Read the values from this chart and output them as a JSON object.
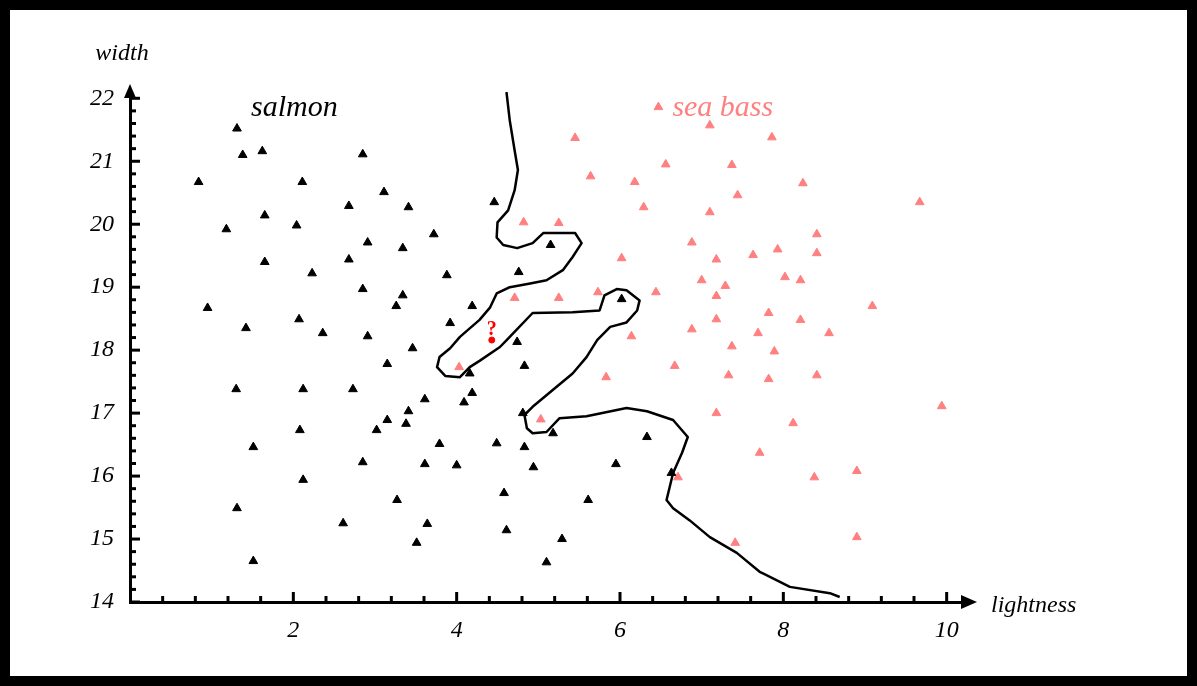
{
  "chart_data": {
    "type": "scatter",
    "xlabel": "lightness",
    "ylabel": "width",
    "xlim": [
      0,
      10.2
    ],
    "ylim": [
      14,
      22.1
    ],
    "xticks": [
      {
        "value": 0.4,
        "label": null
      },
      {
        "value": 0.8,
        "label": null
      },
      {
        "value": 1.2,
        "label": null
      },
      {
        "value": 1.6,
        "label": null
      },
      2,
      {
        "value": 2.4,
        "label": null
      },
      {
        "value": 2.8,
        "label": null
      },
      {
        "value": 3.2,
        "label": null
      },
      {
        "value": 3.6,
        "label": null
      },
      4,
      {
        "value": 4.4,
        "label": null
      },
      {
        "value": 4.8,
        "label": null
      },
      {
        "value": 5.2,
        "label": null
      },
      {
        "value": 5.6,
        "label": null
      },
      6,
      {
        "value": 6.4,
        "label": null
      },
      {
        "value": 6.8,
        "label": null
      },
      {
        "value": 7.2,
        "label": null
      },
      {
        "value": 7.6,
        "label": null
      },
      8,
      {
        "value": 8.4,
        "label": null
      },
      {
        "value": 8.8,
        "label": null
      },
      {
        "value": 9.2,
        "label": null
      },
      {
        "value": 9.6,
        "label": null
      },
      10
    ],
    "yticks": [
      14,
      {
        "value": 14.2,
        "label": null
      },
      {
        "value": 14.4,
        "label": null
      },
      {
        "value": 14.6,
        "label": null
      },
      {
        "value": 14.8,
        "label": null
      },
      15,
      {
        "value": 15.2,
        "label": null
      },
      {
        "value": 15.4,
        "label": null
      },
      {
        "value": 15.6,
        "label": null
      },
      {
        "value": 15.8,
        "label": null
      },
      16,
      {
        "value": 16.2,
        "label": null
      },
      {
        "value": 16.4,
        "label": null
      },
      {
        "value": 16.6,
        "label": null
      },
      {
        "value": 16.8,
        "label": null
      },
      17,
      {
        "value": 17.2,
        "label": null
      },
      {
        "value": 17.4,
        "label": null
      },
      {
        "value": 17.6,
        "label": null
      },
      {
        "value": 17.8,
        "label": null
      },
      18,
      {
        "value": 18.2,
        "label": null
      },
      {
        "value": 18.4,
        "label": null
      },
      {
        "value": 18.6,
        "label": null
      },
      {
        "value": 18.8,
        "label": null
      },
      19,
      {
        "value": 19.2,
        "label": null
      },
      {
        "value": 19.4,
        "label": null
      },
      {
        "value": 19.6,
        "label": null
      },
      {
        "value": 19.8,
        "label": null
      },
      20,
      {
        "value": 20.2,
        "label": null
      },
      {
        "value": 20.4,
        "label": null
      },
      {
        "value": 20.6,
        "label": null
      },
      {
        "value": 20.8,
        "label": null
      },
      21,
      {
        "value": 21.2,
        "label": null
      },
      {
        "value": 21.4,
        "label": null
      },
      {
        "value": 21.6,
        "label": null
      },
      {
        "value": 21.8,
        "label": null
      },
      22
    ],
    "grid": false,
    "legend": false,
    "marker": "triangle",
    "series": [
      {
        "name": "salmon",
        "color": "#000000",
        "x": [
          1.31,
          1.38,
          1.62,
          2.85,
          0.84,
          2.11,
          3.11,
          2.68,
          3.41,
          1.65,
          1.18,
          2.04,
          2.91,
          3.34,
          3.72,
          1.65,
          2.68,
          2.23,
          2.85,
          3.34,
          3.26,
          0.95,
          2.07,
          1.42,
          2.36,
          2.91,
          4.46,
          5.15,
          3.88,
          4.76,
          4.19,
          3.92,
          6.02,
          4.74,
          3.46,
          4.16,
          4.83,
          4.19,
          3.61,
          4.09,
          3.41,
          3.38,
          4.81,
          5.18,
          6.33,
          3.79,
          4.49,
          4.83,
          3.61,
          4.0,
          4.94,
          5.95,
          4.58,
          5.61,
          6.63,
          3.64,
          4.61,
          3.51,
          5.29,
          5.1,
          3.15,
          1.3,
          2.12,
          2.73,
          3.15,
          2.08,
          3.02,
          1.51,
          2.85,
          2.12,
          3.27,
          1.31,
          2.61,
          1.51
        ],
        "values": [
          21.52,
          21.1,
          21.16,
          21.11,
          20.67,
          20.67,
          20.51,
          20.29,
          20.27,
          20.14,
          19.92,
          19.98,
          19.71,
          19.62,
          19.84,
          19.4,
          19.44,
          19.22,
          18.97,
          18.87,
          18.7,
          18.67,
          18.49,
          18.35,
          18.27,
          18.22,
          20.35,
          19.67,
          19.19,
          19.24,
          18.7,
          18.43,
          18.81,
          18.13,
          18.03,
          17.63,
          17.75,
          17.32,
          17.22,
          17.17,
          17.03,
          16.83,
          17.0,
          16.68,
          16.62,
          16.51,
          16.52,
          16.46,
          16.19,
          16.17,
          16.14,
          16.19,
          15.73,
          15.62,
          16.05,
          15.24,
          15.14,
          14.94,
          15.0,
          14.63,
          17.78,
          17.38,
          17.38,
          17.38,
          16.89,
          16.73,
          16.73,
          16.46,
          16.22,
          15.94,
          15.62,
          15.49,
          15.25,
          14.65
        ]
      },
      {
        "name": "sea bass",
        "color": "#ff8080",
        "x": [
          6.47,
          5.45,
          6.56,
          5.64,
          6.18,
          6.29,
          4.82,
          5.25,
          6.02,
          5.73,
          6.44,
          4.71,
          5.25,
          6.14,
          7.1,
          7.86,
          7.37,
          8.24,
          7.44,
          9.67,
          7.1,
          6.88,
          8.41,
          7.18,
          7.63,
          7.93,
          8.41,
          7.0,
          7.29,
          8.02,
          8.21,
          7.18,
          9.09,
          7.82,
          7.18,
          8.21,
          6.88,
          7.69,
          8.56,
          7.37,
          7.89,
          6.67,
          7.33,
          7.82,
          8.41,
          9.94,
          7.18,
          8.12,
          7.71,
          6.71,
          8.38,
          8.9,
          7.41,
          8.9,
          4.03,
          5.83,
          5.03
        ],
        "values": [
          21.86,
          21.37,
          20.95,
          20.76,
          20.67,
          20.27,
          20.03,
          20.02,
          19.46,
          18.92,
          18.92,
          18.83,
          18.83,
          18.22,
          21.57,
          21.38,
          20.94,
          20.65,
          20.46,
          20.35,
          20.19,
          19.71,
          19.84,
          19.44,
          19.51,
          19.6,
          19.54,
          19.11,
          19.02,
          19.16,
          19.11,
          18.86,
          18.7,
          18.59,
          18.49,
          18.48,
          18.33,
          18.27,
          18.27,
          18.06,
          17.98,
          17.75,
          17.6,
          17.54,
          17.6,
          17.11,
          17.0,
          16.84,
          16.37,
          15.98,
          15.98,
          16.08,
          14.94,
          15.03,
          17.73,
          17.57,
          16.9
        ]
      },
      {
        "name": "?",
        "color": "#ff0000",
        "marker": "circle",
        "x": [
          4.43
        ],
        "values": [
          18.16
        ]
      },
      {
        "type": "line",
        "marker": "none",
        "color": "#000000",
        "x": [
          4.61,
          4.65,
          4.71,
          4.75,
          4.71,
          4.63,
          4.5,
          4.49,
          4.57,
          4.74,
          4.93,
          5.06,
          5.45,
          5.53,
          5.42,
          5.3,
          5.1,
          4.9,
          4.65,
          4.49,
          4.41,
          4.28,
          4.04,
          3.92,
          3.79,
          3.76,
          3.86,
          4.04,
          4.16,
          4.28,
          4.53,
          4.65,
          4.93,
          5.42,
          5.75,
          5.81,
          5.96,
          6.08,
          6.24,
          6.21,
          6.08,
          5.88,
          5.72,
          5.59,
          5.42,
          5.18,
          4.93,
          4.83,
          4.86,
          4.93,
          5.1,
          5.26,
          5.59,
          6.08,
          6.33,
          6.65,
          6.83,
          6.76,
          6.65,
          6.57,
          6.65,
          6.85,
          7.1,
          7.43,
          7.71,
          8.08,
          8.57,
          8.69
        ],
        "values": [
          22.1,
          21.65,
          21.17,
          20.86,
          20.54,
          20.22,
          20.03,
          19.79,
          19.67,
          19.62,
          19.7,
          19.86,
          19.86,
          19.7,
          19.48,
          19.27,
          19.11,
          19.06,
          19.0,
          18.9,
          18.68,
          18.48,
          18.21,
          18.03,
          17.89,
          17.73,
          17.59,
          17.57,
          17.73,
          17.83,
          18.05,
          18.21,
          18.59,
          18.6,
          18.63,
          18.87,
          18.97,
          18.95,
          18.79,
          18.63,
          18.44,
          18.37,
          18.16,
          17.89,
          17.63,
          17.37,
          17.1,
          16.97,
          16.76,
          16.68,
          16.7,
          16.92,
          16.95,
          17.08,
          17.03,
          16.89,
          16.62,
          16.37,
          16.05,
          15.62,
          15.49,
          15.3,
          15.03,
          14.78,
          14.48,
          14.24,
          14.14,
          14.08
        ]
      }
    ]
  }
}
